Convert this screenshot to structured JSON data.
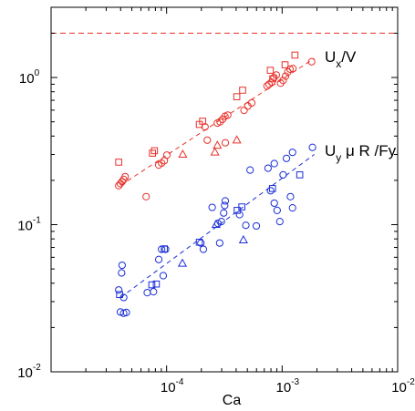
{
  "chart_data": {
    "type": "scatter",
    "title": "",
    "xlabel": "Ca",
    "ylabel": "",
    "xscale": "log",
    "yscale": "log",
    "xlim": [
      1e-05,
      0.01
    ],
    "ylim": [
      0.01,
      3
    ],
    "grid": false,
    "x_ticks": [
      {
        "value": 0.0001,
        "base": "10",
        "exp": "-4"
      },
      {
        "value": 0.001,
        "base": "10",
        "exp": "-3"
      },
      {
        "value": 0.01,
        "base": "10",
        "exp": "-2"
      }
    ],
    "y_ticks": [
      {
        "value": 0.01,
        "base": "10",
        "exp": "-2"
      },
      {
        "value": 0.1,
        "base": "10",
        "exp": "-1"
      },
      {
        "value": 1,
        "base": "10",
        "exp": "0"
      }
    ],
    "annotations": [
      {
        "id": "ux",
        "parts": [
          "U",
          "x",
          "/V"
        ]
      },
      {
        "id": "uy",
        "parts": [
          "U",
          "y",
          " μ R /Fy"
        ]
      }
    ],
    "reference_line": {
      "y": 2.0,
      "color": "#e8302a",
      "style": "dashed"
    },
    "series": [
      {
        "color": "#e8302a",
        "fit": {
          "x": [
            4e-05,
            0.0019
          ],
          "y": [
            0.185,
            1.35
          ]
        },
        "points": [
          {
            "m": "o",
            "x": 3.85e-05,
            "y": 0.184
          },
          {
            "m": "o",
            "x": 3.98e-05,
            "y": 0.19
          },
          {
            "m": "o",
            "x": 4.12e-05,
            "y": 0.196
          },
          {
            "m": "o",
            "x": 4.25e-05,
            "y": 0.203
          },
          {
            "m": "o",
            "x": 4.38e-05,
            "y": 0.212
          },
          {
            "m": "s",
            "x": 3.85e-05,
            "y": 0.266
          },
          {
            "m": "o",
            "x": 6.65e-05,
            "y": 0.155
          },
          {
            "m": "s",
            "x": 7.55e-05,
            "y": 0.306
          },
          {
            "m": "s",
            "x": 7.85e-05,
            "y": 0.318
          },
          {
            "m": "o",
            "x": 8.55e-05,
            "y": 0.254
          },
          {
            "m": "o",
            "x": 9.05e-05,
            "y": 0.262
          },
          {
            "m": "o",
            "x": 9.55e-05,
            "y": 0.272
          },
          {
            "m": "o",
            "x": 0.0001005,
            "y": 0.297
          },
          {
            "m": "t",
            "x": 0.000138,
            "y": 0.3
          },
          {
            "m": "s",
            "x": 0.000192,
            "y": 0.48
          },
          {
            "m": "s",
            "x": 0.000205,
            "y": 0.505
          },
          {
            "m": "o",
            "x": 0.000215,
            "y": 0.462
          },
          {
            "m": "o",
            "x": 0.000225,
            "y": 0.375
          },
          {
            "m": "t",
            "x": 0.000262,
            "y": 0.31
          },
          {
            "m": "t",
            "x": 0.000275,
            "y": 0.345
          },
          {
            "m": "o",
            "x": 0.000275,
            "y": 0.49
          },
          {
            "m": "o",
            "x": 0.00029,
            "y": 0.5
          },
          {
            "m": "o",
            "x": 0.000305,
            "y": 0.52
          },
          {
            "m": "o",
            "x": 0.00032,
            "y": 0.545
          },
          {
            "m": "o",
            "x": 0.000338,
            "y": 0.555
          },
          {
            "m": "o",
            "x": 0.000322,
            "y": 0.36
          },
          {
            "m": "t",
            "x": 0.000405,
            "y": 0.375
          },
          {
            "m": "s",
            "x": 0.000405,
            "y": 0.74
          },
          {
            "m": "s",
            "x": 0.000455,
            "y": 0.82
          },
          {
            "m": "o",
            "x": 0.000468,
            "y": 0.598
          },
          {
            "m": "o",
            "x": 0.000505,
            "y": 0.64
          },
          {
            "m": "o",
            "x": 0.000545,
            "y": 0.672
          },
          {
            "m": "s",
            "x": 0.00079,
            "y": 1.12
          },
          {
            "m": "s",
            "x": 0.00083,
            "y": 0.98
          },
          {
            "m": "o",
            "x": 0.00074,
            "y": 0.875
          },
          {
            "m": "o",
            "x": 0.00077,
            "y": 0.9
          },
          {
            "m": "o",
            "x": 0.00081,
            "y": 0.93
          },
          {
            "m": "o",
            "x": 0.00085,
            "y": 1.0
          },
          {
            "m": "o",
            "x": 0.00089,
            "y": 1.04
          },
          {
            "m": "o",
            "x": 0.00097,
            "y": 0.915
          },
          {
            "m": "o",
            "x": 0.00102,
            "y": 0.955
          },
          {
            "m": "o",
            "x": 0.00107,
            "y": 1.02
          },
          {
            "m": "o",
            "x": 0.00112,
            "y": 1.09
          },
          {
            "m": "o",
            "x": 0.00117,
            "y": 1.14
          },
          {
            "m": "s",
            "x": 0.00106,
            "y": 1.22
          },
          {
            "m": "s",
            "x": 0.00129,
            "y": 1.42
          },
          {
            "m": "o",
            "x": 0.00124,
            "y": 1.15
          },
          {
            "m": "o",
            "x": 0.0018,
            "y": 1.28
          }
        ]
      },
      {
        "color": "#1a2ed6",
        "fit": {
          "x": [
            4e-05,
            0.0019
          ],
          "y": [
            0.032,
            0.3
          ]
        },
        "points": [
          {
            "m": "o",
            "x": 4.12e-05,
            "y": 0.053
          },
          {
            "m": "o",
            "x": 4.08e-05,
            "y": 0.047
          },
          {
            "m": "o",
            "x": 3.85e-05,
            "y": 0.036
          },
          {
            "m": "s",
            "x": 3.92e-05,
            "y": 0.0335
          },
          {
            "m": "o",
            "x": 4.25e-05,
            "y": 0.032
          },
          {
            "m": "o",
            "x": 3.98e-05,
            "y": 0.0255
          },
          {
            "m": "o",
            "x": 4.25e-05,
            "y": 0.025
          },
          {
            "m": "o",
            "x": 4.48e-05,
            "y": 0.0253
          },
          {
            "m": "o",
            "x": 6.8e-05,
            "y": 0.0345
          },
          {
            "m": "s",
            "x": 7.45e-05,
            "y": 0.039
          },
          {
            "m": "s",
            "x": 8.15e-05,
            "y": 0.0395
          },
          {
            "m": "o",
            "x": 7.7e-05,
            "y": 0.035
          },
          {
            "m": "o",
            "x": 8.55e-05,
            "y": 0.058
          },
          {
            "m": "o",
            "x": 9.05e-05,
            "y": 0.068
          },
          {
            "m": "s",
            "x": 9.55e-05,
            "y": 0.0685
          },
          {
            "m": "o",
            "x": 9.8e-05,
            "y": 0.068
          },
          {
            "m": "o",
            "x": 9.35e-05,
            "y": 0.045
          },
          {
            "m": "t",
            "x": 0.000137,
            "y": 0.0545
          },
          {
            "m": "s",
            "x": 0.000192,
            "y": 0.076
          },
          {
            "m": "o",
            "x": 0.000198,
            "y": 0.075
          },
          {
            "m": "o",
            "x": 0.000208,
            "y": 0.068
          },
          {
            "m": "o",
            "x": 0.000248,
            "y": 0.131
          },
          {
            "m": "t",
            "x": 0.000268,
            "y": 0.1
          },
          {
            "m": "o",
            "x": 0.000278,
            "y": 0.102
          },
          {
            "m": "o",
            "x": 0.000298,
            "y": 0.105
          },
          {
            "m": "o",
            "x": 0.000312,
            "y": 0.12
          },
          {
            "m": "o",
            "x": 0.000318,
            "y": 0.135
          },
          {
            "m": "o",
            "x": 0.000322,
            "y": 0.145
          },
          {
            "m": "o",
            "x": 0.000288,
            "y": 0.075
          },
          {
            "m": "s",
            "x": 0.000408,
            "y": 0.125
          },
          {
            "m": "s",
            "x": 0.000448,
            "y": 0.132
          },
          {
            "m": "o",
            "x": 0.000428,
            "y": 0.117
          },
          {
            "m": "t",
            "x": 0.000462,
            "y": 0.0785
          },
          {
            "m": "o",
            "x": 0.000485,
            "y": 0.099
          },
          {
            "m": "o",
            "x": 0.000528,
            "y": 0.235
          },
          {
            "m": "o",
            "x": 0.000598,
            "y": 0.098
          },
          {
            "m": "o",
            "x": 0.000755,
            "y": 0.242
          },
          {
            "m": "s",
            "x": 0.000825,
            "y": 0.176
          },
          {
            "m": "o",
            "x": 0.000795,
            "y": 0.17
          },
          {
            "m": "o",
            "x": 0.000855,
            "y": 0.26
          },
          {
            "m": "o",
            "x": 0.000855,
            "y": 0.14
          },
          {
            "m": "o",
            "x": 0.000905,
            "y": 0.125
          },
          {
            "m": "o",
            "x": 0.000955,
            "y": 0.105
          },
          {
            "m": "o",
            "x": 0.00102,
            "y": 0.218
          },
          {
            "m": "o",
            "x": 0.00109,
            "y": 0.282
          },
          {
            "m": "o",
            "x": 0.00118,
            "y": 0.155
          },
          {
            "m": "o",
            "x": 0.00123,
            "y": 0.13
          },
          {
            "m": "o",
            "x": 0.00123,
            "y": 0.31
          },
          {
            "m": "s",
            "x": 0.00142,
            "y": 0.218
          },
          {
            "m": "o",
            "x": 0.00183,
            "y": 0.335
          }
        ]
      }
    ]
  }
}
